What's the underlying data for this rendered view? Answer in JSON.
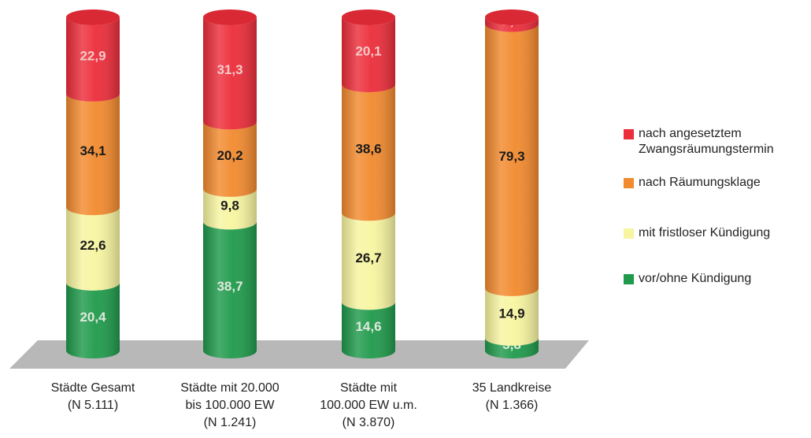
{
  "chart_data": {
    "type": "bar",
    "stacked": true,
    "percent_stacked": true,
    "categories": [
      "Städte Gesamt\n(N 5.111)",
      "Städte mit 20.000\nbis 100.000 EW\n(N 1.241)",
      "Städte mit\n100.000 EW u.m.\n(N 3.870)",
      "35 Landkreise\n(N 1.366)"
    ],
    "series": [
      {
        "name": "vor/ohne Kündigung",
        "values": [
          20.4,
          38.7,
          14.6,
          3.8
        ],
        "labels": [
          "20,4",
          "38,7",
          "14,6",
          "3,8"
        ],
        "color": "#1f9a4b",
        "label_color": "#dfe9dc"
      },
      {
        "name": "mit fristloser Kündigung",
        "values": [
          22.6,
          9.8,
          26.7,
          14.9
        ],
        "labels": [
          "22,6",
          "9,8",
          "26,7",
          "14,9"
        ],
        "color": "#f7f5a0",
        "label_color": "#1a1a1a"
      },
      {
        "name": "nach Räumungsklage",
        "values": [
          34.1,
          20.2,
          38.6,
          79.3
        ],
        "labels": [
          "34,1",
          "20,2",
          "38,6",
          "79,3"
        ],
        "color": "#f28a2e",
        "label_color": "#1a1a1a"
      },
      {
        "name": "nach angesetztem\nZwangsräumungstermin",
        "values": [
          22.9,
          31.3,
          20.1,
          2.0
        ],
        "labels": [
          "22,9",
          "31,3",
          "20,1",
          "2,0"
        ],
        "color": "#ec2d3a",
        "label_color": "#f5c9c9"
      }
    ],
    "legend_order": [
      3,
      2,
      1,
      0
    ],
    "ylim": [
      0,
      100
    ],
    "legend_position": "right",
    "grid": false
  }
}
